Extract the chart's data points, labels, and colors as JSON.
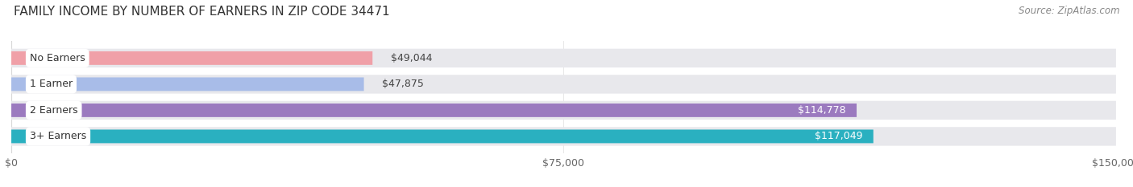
{
  "title": "FAMILY INCOME BY NUMBER OF EARNERS IN ZIP CODE 34471",
  "source": "Source: ZipAtlas.com",
  "categories": [
    "No Earners",
    "1 Earner",
    "2 Earners",
    "3+ Earners"
  ],
  "values": [
    49044,
    47875,
    114778,
    117049
  ],
  "bar_colors": [
    "#f0a0a8",
    "#a8bce8",
    "#9b7abf",
    "#2ab0c0"
  ],
  "label_colors": [
    "#444444",
    "#444444",
    "#ffffff",
    "#ffffff"
  ],
  "bg_color": "#ffffff",
  "bar_bg_color": "#e8e8ec",
  "xlim": [
    0,
    150000
  ],
  "xticks": [
    0,
    75000,
    150000
  ],
  "xtick_labels": [
    "$0",
    "$75,000",
    "$150,000"
  ],
  "value_labels": [
    "$49,044",
    "$47,875",
    "$114,778",
    "$117,049"
  ],
  "title_fontsize": 11,
  "source_fontsize": 8.5,
  "label_fontsize": 9,
  "tick_fontsize": 9
}
